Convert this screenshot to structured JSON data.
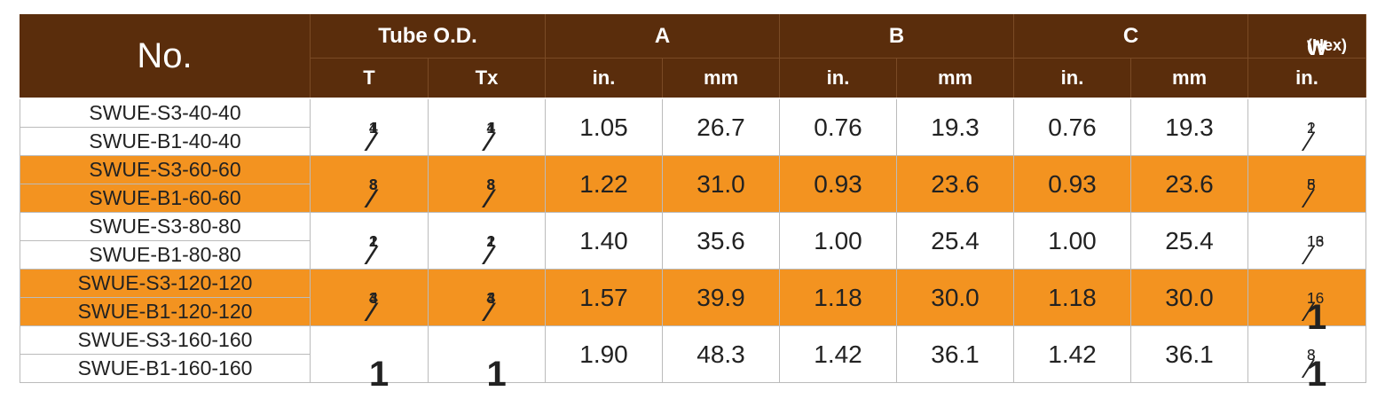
{
  "header": {
    "no": "No.",
    "tube_od": "Tube O.D.",
    "a": "A",
    "b": "B",
    "c": "C",
    "w": "W",
    "w_note": "(Hex)",
    "sub": [
      "T",
      "Tx",
      "in.",
      "mm",
      "in.",
      "mm",
      "in.",
      "mm",
      "in."
    ]
  },
  "table": {
    "rows": [
      {
        "parts": [
          "SWUE-S3-40-40",
          "SWUE-B1-40-40"
        ],
        "t": {
          "num": "1",
          "den": "4"
        },
        "tx": {
          "num": "1",
          "den": "4"
        },
        "cells": [
          "1.05",
          "26.7",
          "0.76",
          "19.3",
          "0.76",
          "19.3"
        ],
        "w": {
          "num": "1",
          "den": "2"
        }
      },
      {
        "parts": [
          "SWUE-S3-60-60",
          "SWUE-B1-60-60"
        ],
        "t": {
          "num": "3",
          "den": "8"
        },
        "tx": {
          "num": "3",
          "den": "8"
        },
        "cells": [
          "1.22",
          "31.0",
          "0.93",
          "23.6",
          "0.93",
          "23.6"
        ],
        "w": {
          "num": "5",
          "den": "8"
        }
      },
      {
        "parts": [
          "SWUE-S3-80-80",
          "SWUE-B1-80-80"
        ],
        "t": {
          "num": "1",
          "den": "2"
        },
        "tx": {
          "num": "1",
          "den": "2"
        },
        "cells": [
          "1.40",
          "35.6",
          "1.00",
          "25.4",
          "1.00",
          "25.4"
        ],
        "w": {
          "num": "13",
          "den": "16"
        }
      },
      {
        "parts": [
          "SWUE-S3-120-120",
          "SWUE-B1-120-120"
        ],
        "t": {
          "num": "3",
          "den": "4"
        },
        "tx": {
          "num": "3",
          "den": "4"
        },
        "cells": [
          "1.57",
          "39.9",
          "1.18",
          "30.0",
          "1.18",
          "30.0"
        ],
        "w": {
          "whole": "1",
          "num": "1",
          "den": "16"
        }
      },
      {
        "parts": [
          "SWUE-S3-160-160",
          "SWUE-B1-160-160"
        ],
        "t": {
          "whole": "1"
        },
        "tx": {
          "whole": "1"
        },
        "cells": [
          "1.90",
          "48.3",
          "1.42",
          "36.1",
          "1.42",
          "36.1"
        ],
        "w": {
          "whole": "1",
          "num": "3",
          "den": "8"
        }
      }
    ]
  }
}
